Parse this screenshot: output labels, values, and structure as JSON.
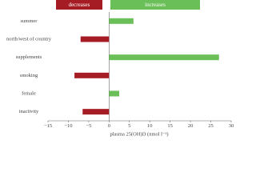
{
  "chart_data": {
    "type": "hbar",
    "categories": [
      "summer",
      "north/west of country",
      "supplements",
      "smoking",
      "female",
      "inactivity"
    ],
    "values": [
      6,
      -7,
      27,
      -8.5,
      2.5,
      -6.5
    ],
    "legend": [
      {
        "name": "decreases",
        "color": "#a51c24"
      },
      {
        "name": "increases",
        "color": "#6bbf59"
      }
    ],
    "x_label": "plasma 25(OH)D (nmol l⁻¹)",
    "xlim": [
      -15,
      30
    ],
    "xticks": [
      {
        "value": -15,
        "label": "−15"
      },
      {
        "value": -10,
        "label": "−10"
      },
      {
        "value": -5,
        "label": "−5"
      },
      0,
      5,
      10,
      15,
      20,
      25,
      30
    ]
  }
}
